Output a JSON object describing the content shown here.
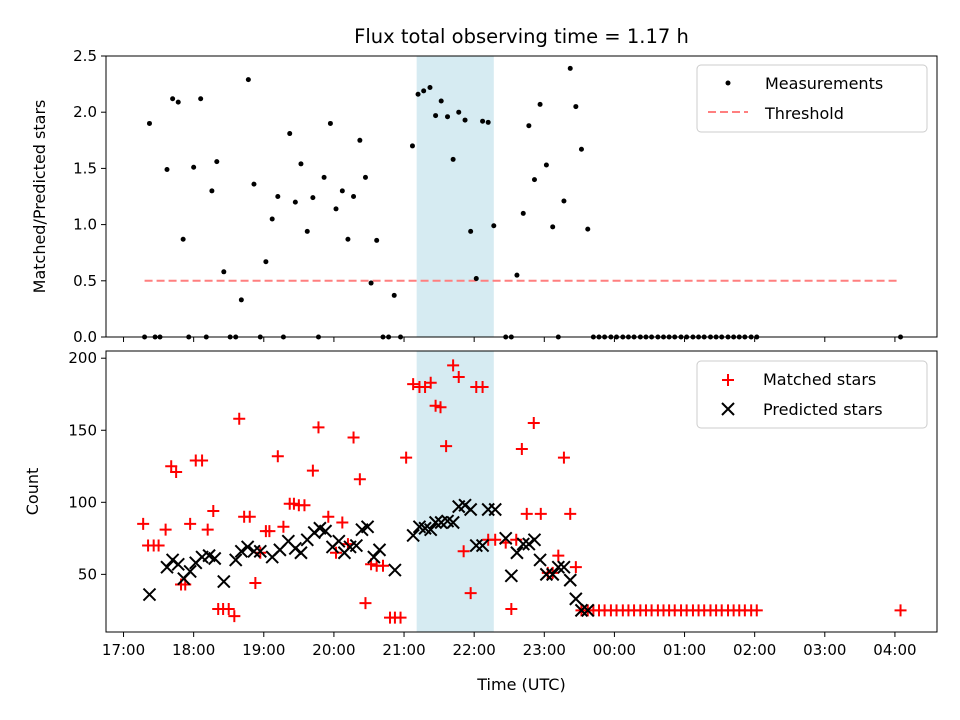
{
  "chart_data": [
    {
      "type": "scatter",
      "title": "Flux total observing time = 1.17 h",
      "xlabel": "",
      "ylabel": "Matched/Predicted stars",
      "xlim": [
        16.75,
        28.6
      ],
      "ylim": [
        0,
        2.5
      ],
      "yticks": [
        "0.0",
        "0.5",
        "1.0",
        "1.5",
        "2.0",
        "2.5"
      ],
      "highlight_span": [
        21.18,
        22.28
      ],
      "legend": [
        "Measurements",
        "Threshold"
      ],
      "legend_position": "top-right",
      "threshold": {
        "value": 0.5,
        "x_range": [
          17.3,
          28.08
        ]
      },
      "series": [
        {
          "name": "Measurements",
          "x": [
            17.3,
            17.37,
            17.45,
            17.52,
            17.62,
            17.7,
            17.78,
            17.85,
            17.93,
            18.0,
            18.1,
            18.18,
            18.26,
            18.33,
            18.43,
            18.52,
            18.6,
            18.68,
            18.78,
            18.86,
            18.95,
            19.03,
            19.12,
            19.2,
            19.28,
            19.37,
            19.45,
            19.53,
            19.62,
            19.7,
            19.78,
            19.86,
            19.95,
            20.03,
            20.12,
            20.2,
            20.28,
            20.37,
            20.45,
            20.53,
            20.61,
            20.7,
            20.78,
            20.86,
            20.95,
            21.12,
            21.2,
            21.28,
            21.37,
            21.45,
            21.53,
            21.62,
            21.7,
            21.78,
            21.87,
            21.95,
            22.03,
            22.12,
            22.2,
            22.28,
            22.45,
            22.53,
            22.61,
            22.7,
            22.78,
            22.86,
            22.94,
            23.03,
            23.12,
            23.2,
            23.28,
            23.37,
            23.45,
            23.53,
            23.62,
            23.7,
            23.78,
            23.86,
            23.95,
            24.03,
            24.12,
            24.2,
            24.28,
            24.37,
            24.45,
            24.53,
            24.62,
            24.7,
            24.78,
            24.86,
            24.95,
            25.03,
            25.12,
            25.2,
            25.28,
            25.37,
            25.45,
            25.53,
            25.62,
            25.7,
            25.78,
            25.86,
            25.95,
            26.03,
            28.08
          ],
          "y": [
            0.0,
            1.9,
            0.0,
            0.0,
            1.49,
            2.12,
            2.09,
            0.87,
            0.0,
            1.51,
            2.12,
            0.0,
            1.3,
            1.56,
            0.58,
            0.0,
            0.0,
            0.33,
            2.29,
            1.36,
            0.0,
            0.67,
            1.05,
            1.25,
            0.0,
            1.81,
            1.2,
            1.54,
            0.94,
            1.24,
            0.0,
            1.42,
            1.9,
            1.14,
            1.3,
            0.87,
            1.25,
            1.75,
            1.42,
            0.48,
            0.86,
            0.0,
            0.0,
            0.37,
            0.0,
            1.7,
            2.16,
            2.19,
            2.22,
            1.97,
            2.1,
            1.96,
            1.58,
            2.0,
            1.93,
            0.94,
            0.52,
            1.92,
            1.91,
            0.99,
            0.0,
            0.0,
            0.55,
            1.1,
            1.88,
            1.4,
            2.07,
            1.53,
            0.98,
            0.0,
            1.21,
            2.39,
            2.05,
            1.67,
            0.96,
            0,
            0,
            0,
            0,
            0,
            0,
            0,
            0,
            0,
            0,
            0,
            0,
            0,
            0,
            0,
            0,
            0,
            0,
            0,
            0,
            0,
            0,
            0,
            0,
            0,
            0,
            0,
            0,
            0,
            0.0
          ]
        }
      ]
    },
    {
      "type": "scatter",
      "title": "",
      "xlabel": "Time (UTC)",
      "ylabel": "Count",
      "xlim": [
        16.75,
        28.6
      ],
      "ylim": [
        10,
        205
      ],
      "yticks": [
        "50",
        "100",
        "150",
        "200"
      ],
      "xticks": [
        "17:00",
        "18:00",
        "19:00",
        "20:00",
        "21:00",
        "22:00",
        "23:00",
        "00:00",
        "01:00",
        "02:00",
        "03:00",
        "04:00"
      ],
      "highlight_span": [
        21.18,
        22.28
      ],
      "legend": [
        "Matched stars",
        "Predicted stars"
      ],
      "legend_position": "top-right",
      "series": [
        {
          "name": "Matched stars",
          "x": [
            17.28,
            17.35,
            17.43,
            17.5,
            17.6,
            17.68,
            17.75,
            17.82,
            17.88,
            17.95,
            18.03,
            18.12,
            18.2,
            18.28,
            18.35,
            18.42,
            18.5,
            18.58,
            18.65,
            18.72,
            18.8,
            18.88,
            18.95,
            19.03,
            19.08,
            19.2,
            19.28,
            19.37,
            19.43,
            19.5,
            19.58,
            19.7,
            19.78,
            19.92,
            20.03,
            20.12,
            20.2,
            20.28,
            20.37,
            20.45,
            20.53,
            20.61,
            20.7,
            20.8,
            20.87,
            20.95,
            21.03,
            21.13,
            21.22,
            21.3,
            21.38,
            21.45,
            21.52,
            21.6,
            21.7,
            21.78,
            21.85,
            21.95,
            22.03,
            22.12,
            22.2,
            22.3,
            22.45,
            22.53,
            22.6,
            22.68,
            22.75,
            22.85,
            22.95,
            23.05,
            23.12,
            23.2,
            23.28,
            23.37,
            23.45,
            23.53,
            23.62,
            23.7,
            23.78,
            23.86,
            23.95,
            24.03,
            24.12,
            24.2,
            24.28,
            24.37,
            24.45,
            24.53,
            24.62,
            24.7,
            24.78,
            24.86,
            24.95,
            25.03,
            25.12,
            25.2,
            25.28,
            25.37,
            25.45,
            25.53,
            25.62,
            25.7,
            25.78,
            25.86,
            25.95,
            26.03,
            28.08
          ],
          "y": [
            85,
            70,
            70,
            70,
            81,
            125,
            121,
            43,
            43,
            85,
            129,
            129,
            81,
            94,
            26,
            26,
            26,
            21,
            158,
            90,
            90,
            44,
            65,
            80,
            80,
            132,
            83,
            99,
            99,
            98,
            98,
            122,
            152,
            90,
            65,
            86,
            71,
            145,
            116,
            30,
            57,
            56,
            56,
            20,
            20,
            20,
            131,
            182,
            180,
            180,
            183,
            167,
            166,
            139,
            195,
            187,
            66,
            37,
            180,
            180,
            74,
            74,
            72,
            26,
            74,
            137,
            92,
            155,
            92,
            51,
            51,
            63,
            131,
            92,
            55,
            25,
            25,
            25,
            25,
            25,
            25,
            25,
            25,
            25,
            25,
            25,
            25,
            25,
            25,
            25,
            25,
            25,
            25,
            25,
            25,
            25,
            25,
            25,
            25,
            25,
            25,
            25,
            25,
            25,
            25,
            25,
            25
          ]
        },
        {
          "name": "Predicted stars",
          "x": [
            17.37,
            17.62,
            17.7,
            17.78,
            17.86,
            17.95,
            18.03,
            18.12,
            18.22,
            18.3,
            18.43,
            18.6,
            18.68,
            18.77,
            18.86,
            18.95,
            19.12,
            19.23,
            19.35,
            19.45,
            19.53,
            19.62,
            19.72,
            19.8,
            19.88,
            19.98,
            20.07,
            20.15,
            20.23,
            20.32,
            20.4,
            20.48,
            20.57,
            20.65,
            20.87,
            21.13,
            21.22,
            21.3,
            21.38,
            21.45,
            21.53,
            21.62,
            21.7,
            21.78,
            21.87,
            21.95,
            22.03,
            22.12,
            22.2,
            22.3,
            22.45,
            22.53,
            22.61,
            22.7,
            22.78,
            22.86,
            22.94,
            23.03,
            23.12,
            23.2,
            23.28,
            23.37,
            23.45,
            23.53,
            23.62
          ],
          "y": [
            36,
            55,
            60,
            57,
            47,
            52,
            58,
            62,
            63,
            61,
            45,
            60,
            66,
            69,
            66,
            66,
            62,
            67,
            73,
            68,
            65,
            74,
            79,
            82,
            80,
            69,
            73,
            65,
            69,
            70,
            81,
            83,
            62,
            67,
            53,
            77,
            83,
            82,
            81,
            86,
            86,
            87,
            86,
            97,
            98,
            95,
            70,
            70,
            95,
            95,
            75,
            49,
            65,
            71,
            71,
            74,
            60,
            50,
            50,
            55,
            55,
            46,
            33,
            25,
            25
          ]
        }
      ]
    }
  ]
}
